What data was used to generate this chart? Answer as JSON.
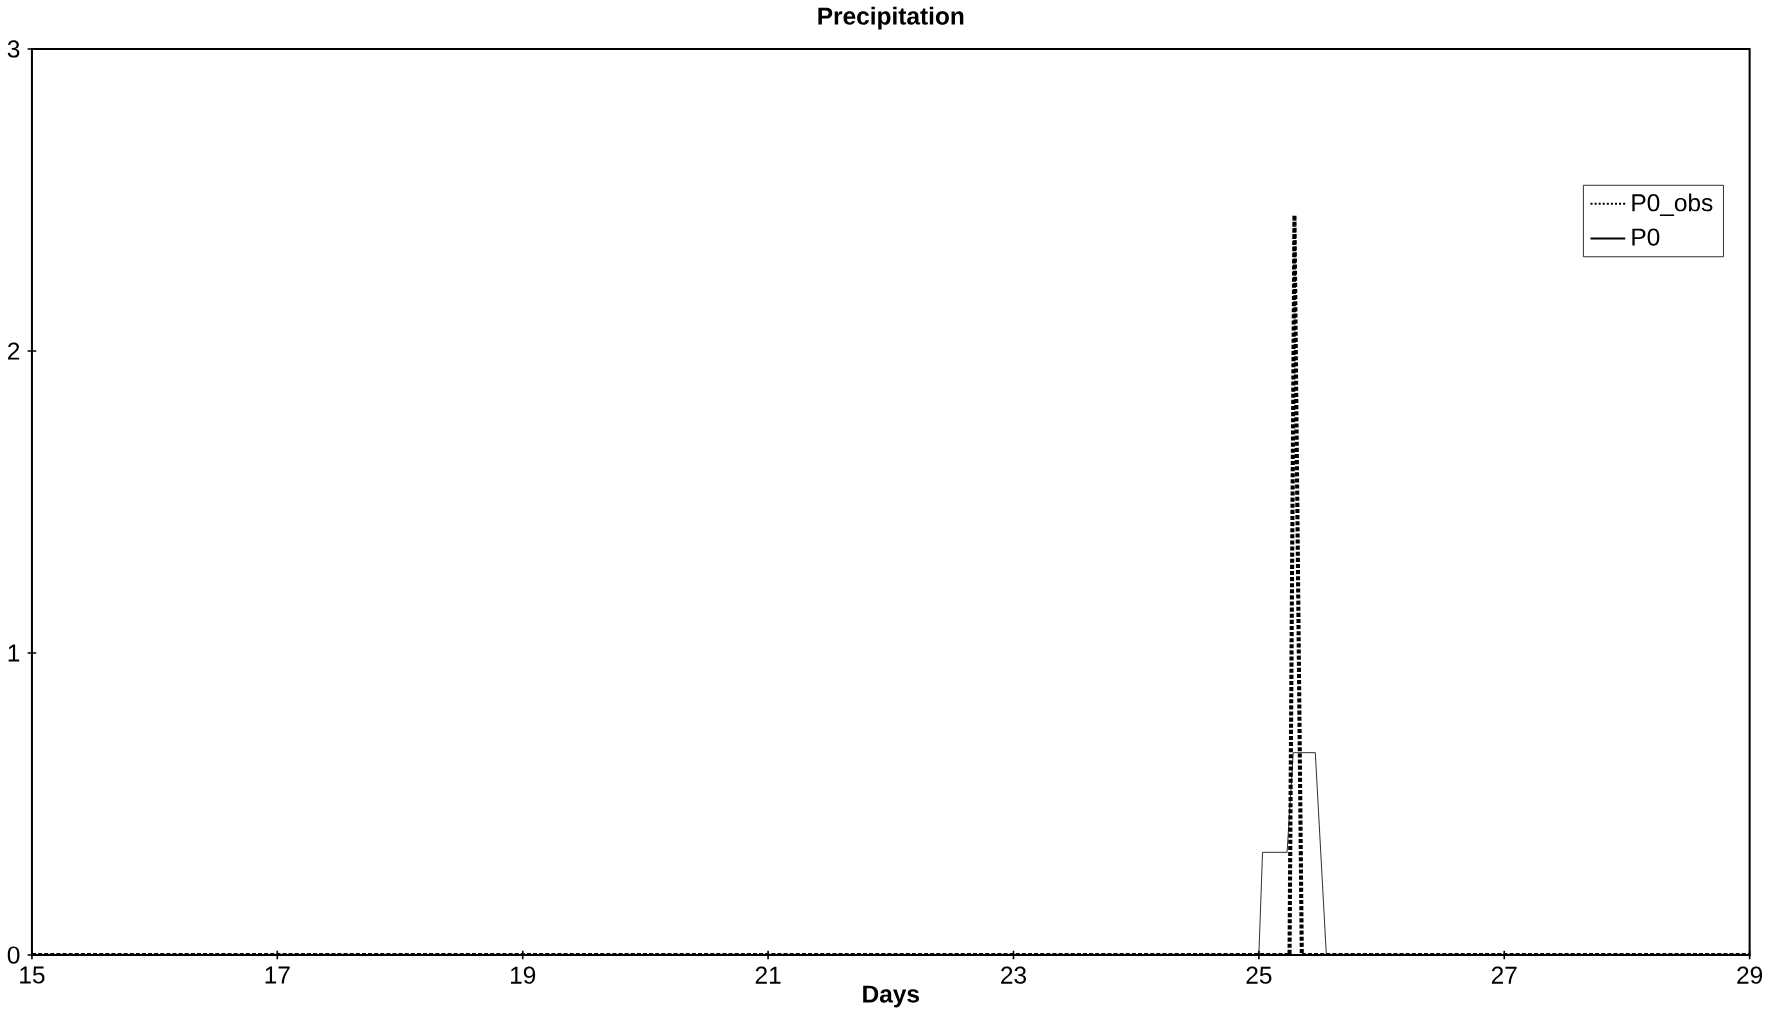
{
  "chart_data": {
    "type": "line",
    "title": "Precipitation",
    "xlabel": "Days",
    "xlim": [
      15,
      29
    ],
    "xticks": [
      15,
      17,
      19,
      21,
      23,
      25,
      27,
      29
    ],
    "ylim": [
      0,
      3
    ],
    "yticks": [
      0,
      1,
      2,
      3
    ],
    "grid": false,
    "legend": "top right",
    "marker": "none",
    "series": [
      {
        "name": "P0_obs",
        "color": "#000000",
        "line_style": "dotted",
        "x": [
          15,
          25.25,
          25.29,
          25.35,
          29
        ],
        "values": [
          0,
          0,
          2.45,
          0,
          0
        ]
      },
      {
        "name": "P0",
        "color": "#000000",
        "line_style": "solid",
        "x": [
          15,
          25.0,
          25.03,
          25.23,
          25.28,
          25.46,
          25.55,
          29
        ],
        "values": [
          0,
          0,
          0.34,
          0.34,
          0.67,
          0.67,
          0,
          0
        ]
      }
    ]
  }
}
